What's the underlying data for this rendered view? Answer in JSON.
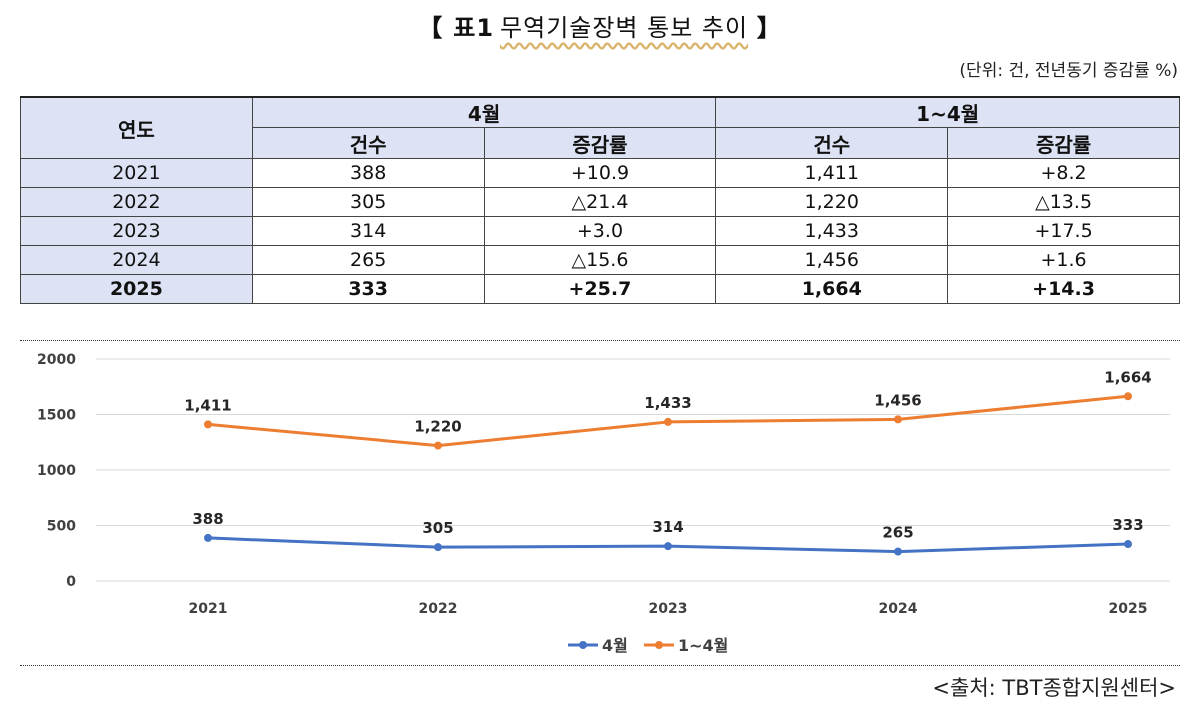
{
  "title": {
    "open_bracket": "【",
    "table_num": "표1",
    "name": "무역기술장벽 통보 추이",
    "close_bracket": "】"
  },
  "unit_note": "(단위: 건, 전년동기 증감률 %)",
  "table": {
    "year_header": "연도",
    "group_headers": [
      "4월",
      "1~4월"
    ],
    "sub_headers": [
      "건수",
      "증감률",
      "건수",
      "증감률"
    ],
    "rows": [
      {
        "year": "2021",
        "cells": [
          "388",
          "+10.9",
          "1,411",
          "+8.2"
        ],
        "bold": false
      },
      {
        "year": "2022",
        "cells": [
          "305",
          "△21.4",
          "1,220",
          "△13.5"
        ],
        "bold": false
      },
      {
        "year": "2023",
        "cells": [
          "314",
          "+3.0",
          "1,433",
          "+17.5"
        ],
        "bold": false
      },
      {
        "year": "2024",
        "cells": [
          "265",
          "△15.6",
          "1,456",
          "+1.6"
        ],
        "bold": false
      },
      {
        "year": "2025",
        "cells": [
          "333",
          "+25.7",
          "1,664",
          "+14.3"
        ],
        "bold": true
      }
    ]
  },
  "chart_data": {
    "type": "line",
    "categories": [
      "2021",
      "2022",
      "2023",
      "2024",
      "2025"
    ],
    "series": [
      {
        "name": "4월",
        "values": [
          388,
          305,
          314,
          265,
          333
        ],
        "labels": [
          "388",
          "305",
          "314",
          "265",
          "333"
        ],
        "color": "#4472c4"
      },
      {
        "name": "1~4월",
        "values": [
          1411,
          1220,
          1433,
          1456,
          1664
        ],
        "labels": [
          "1,411",
          "1,220",
          "1,433",
          "1,456",
          "1,664"
        ],
        "color": "#ed7d31"
      }
    ],
    "ylim": [
      0,
      2000
    ],
    "yticks": [
      0,
      500,
      1000,
      1500,
      2000
    ],
    "ytick_labels": [
      "0",
      "500",
      "1000",
      "1500",
      "2000"
    ],
    "grid": true,
    "legend": "bottom-center",
    "title": "",
    "xlabel": "",
    "ylabel": ""
  },
  "source_note": "<출처: TBT종합지원센터>"
}
